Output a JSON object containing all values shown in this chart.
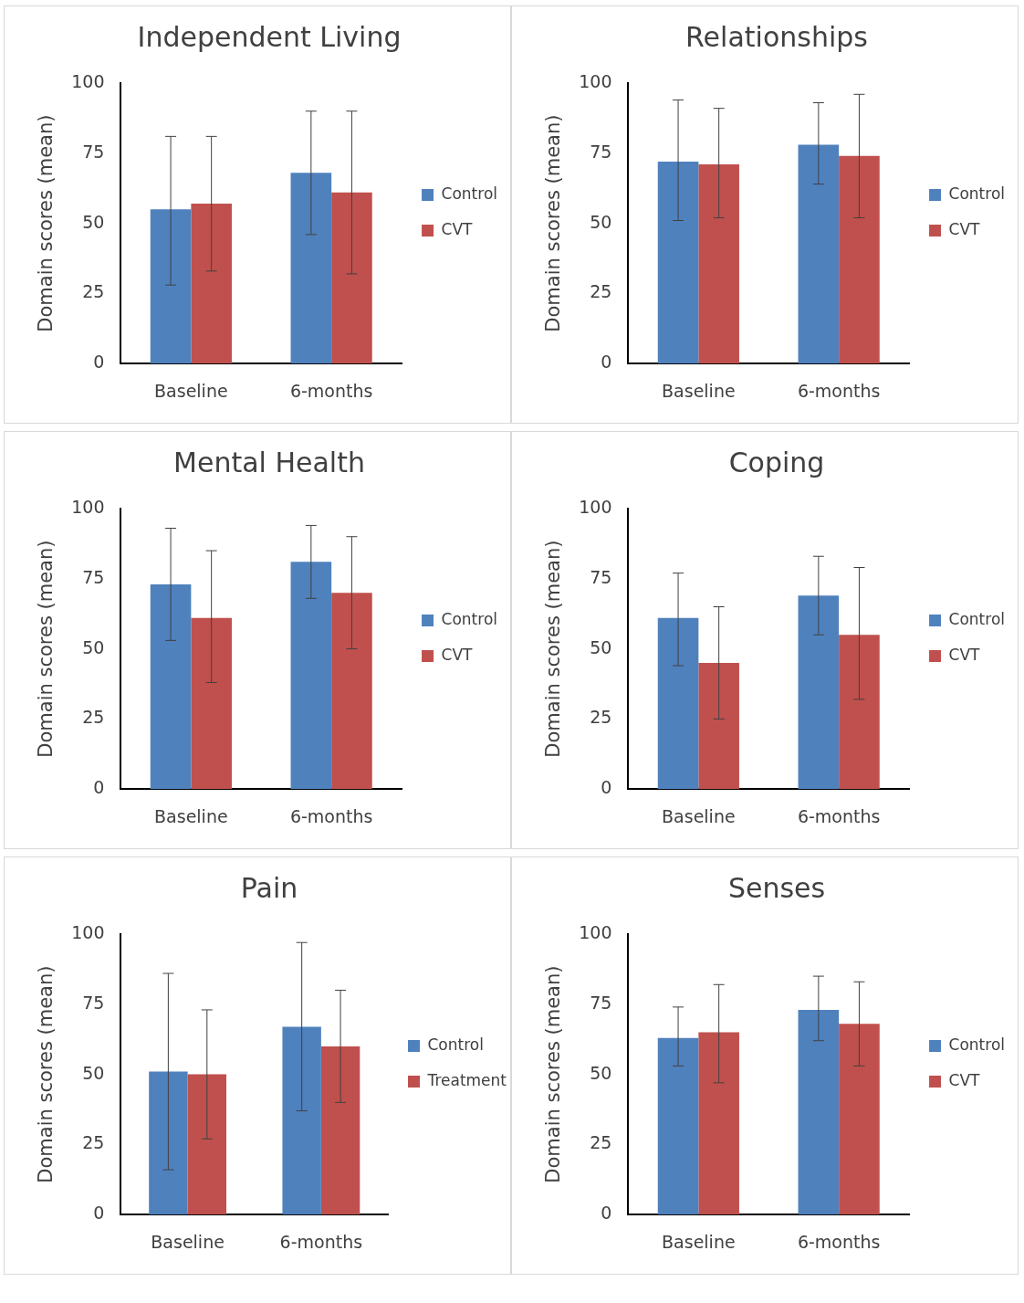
{
  "chart_data": [
    {
      "type": "bar",
      "title": "Independent Living",
      "ylabel": "Domain scores (mean)",
      "categories": [
        "Baseline",
        "6-months"
      ],
      "ylim": [
        0,
        100
      ],
      "yticks": [
        0,
        25,
        50,
        75,
        100
      ],
      "legend": "right",
      "series": [
        {
          "name": "Control",
          "color": "#4f81bd",
          "values": [
            55,
            68
          ],
          "errors": [
            [
              28,
              81
            ],
            [
              46,
              90
            ]
          ]
        },
        {
          "name": "CVT",
          "color": "#c0504d",
          "values": [
            57,
            61
          ],
          "errors": [
            [
              33,
              81
            ],
            [
              32,
              90
            ]
          ]
        }
      ]
    },
    {
      "type": "bar",
      "title": "Relationships",
      "ylabel": "Domain scores (mean)",
      "categories": [
        "Baseline",
        "6-months"
      ],
      "ylim": [
        0,
        100
      ],
      "yticks": [
        0,
        25,
        50,
        75,
        100
      ],
      "legend": "right",
      "series": [
        {
          "name": "Control",
          "color": "#4f81bd",
          "values": [
            72,
            78
          ],
          "errors": [
            [
              51,
              94
            ],
            [
              64,
              93
            ]
          ]
        },
        {
          "name": "CVT",
          "color": "#c0504d",
          "values": [
            71,
            74
          ],
          "errors": [
            [
              52,
              91
            ],
            [
              52,
              96
            ]
          ]
        }
      ]
    },
    {
      "type": "bar",
      "title": "Mental Health",
      "ylabel": "Domain scores (mean)",
      "categories": [
        "Baseline",
        "6-months"
      ],
      "ylim": [
        0,
        100
      ],
      "yticks": [
        0,
        25,
        50,
        75,
        100
      ],
      "legend": "right",
      "series": [
        {
          "name": "Control",
          "color": "#4f81bd",
          "values": [
            73,
            81
          ],
          "errors": [
            [
              53,
              93
            ],
            [
              68,
              94
            ]
          ]
        },
        {
          "name": "CVT",
          "color": "#c0504d",
          "values": [
            61,
            70
          ],
          "errors": [
            [
              38,
              85
            ],
            [
              50,
              90
            ]
          ]
        }
      ]
    },
    {
      "type": "bar",
      "title": "Coping",
      "ylabel": "Domain scores (mean)",
      "categories": [
        "Baseline",
        "6-months"
      ],
      "ylim": [
        0,
        100
      ],
      "yticks": [
        0,
        25,
        50,
        75,
        100
      ],
      "legend": "right",
      "series": [
        {
          "name": "Control",
          "color": "#4f81bd",
          "values": [
            61,
            69
          ],
          "errors": [
            [
              44,
              77
            ],
            [
              55,
              83
            ]
          ]
        },
        {
          "name": "CVT",
          "color": "#c0504d",
          "values": [
            45,
            55
          ],
          "errors": [
            [
              25,
              65
            ],
            [
              32,
              79
            ]
          ]
        }
      ]
    },
    {
      "type": "bar",
      "title": "Pain",
      "ylabel": "Domain scores (mean)",
      "categories": [
        "Baseline",
        "6-months"
      ],
      "ylim": [
        0,
        100
      ],
      "yticks": [
        0,
        25,
        50,
        75,
        100
      ],
      "legend": "right",
      "series": [
        {
          "name": "Control",
          "color": "#4f81bd",
          "values": [
            51,
            67
          ],
          "errors": [
            [
              16,
              86
            ],
            [
              37,
              97
            ]
          ]
        },
        {
          "name": "Treatment",
          "color": "#c0504d",
          "values": [
            50,
            60
          ],
          "errors": [
            [
              27,
              73
            ],
            [
              40,
              80
            ]
          ]
        }
      ]
    },
    {
      "type": "bar",
      "title": "Senses",
      "ylabel": "Domain scores (mean)",
      "categories": [
        "Baseline",
        "6-months"
      ],
      "ylim": [
        0,
        100
      ],
      "yticks": [
        0,
        25,
        50,
        75,
        100
      ],
      "legend": "right",
      "series": [
        {
          "name": "Control",
          "color": "#4f81bd",
          "values": [
            63,
            73
          ],
          "errors": [
            [
              53,
              74
            ],
            [
              62,
              85
            ]
          ]
        },
        {
          "name": "CVT",
          "color": "#c0504d",
          "values": [
            65,
            68
          ],
          "errors": [
            [
              47,
              82
            ],
            [
              53,
              83
            ]
          ]
        }
      ]
    }
  ]
}
